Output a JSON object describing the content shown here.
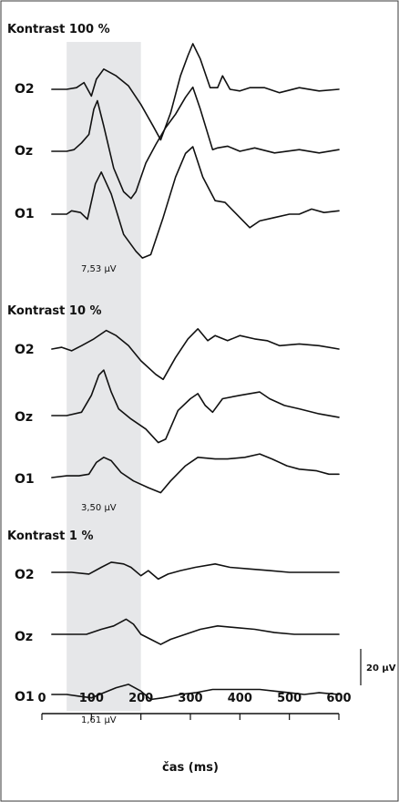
{
  "chart_data": {
    "type": "line",
    "xlabel": "čas (ms)",
    "xlim": [
      0,
      600
    ],
    "x_ticks": [
      0,
      100,
      200,
      300,
      400,
      500,
      600
    ],
    "highlight_window_ms": [
      50,
      200
    ],
    "highlight_color": "#e6e7e9",
    "scale_bar_label": "20 µV",
    "panels": [
      {
        "title": "Kontrast 100 %",
        "amplitude_label": "7,53 µV",
        "series": [
          {
            "name": "O2",
            "points": [
              [
                20,
                0
              ],
              [
                50,
                0
              ],
              [
                70,
                -1
              ],
              [
                85,
                -4
              ],
              [
                100,
                4
              ],
              [
                110,
                -6
              ],
              [
                125,
                -12
              ],
              [
                150,
                -8
              ],
              [
                175,
                -2
              ],
              [
                200,
                9
              ],
              [
                225,
                22
              ],
              [
                240,
                30
              ],
              [
                260,
                14
              ],
              [
                280,
                -8
              ],
              [
                295,
                -20
              ],
              [
                305,
                -27
              ],
              [
                320,
                -18
              ],
              [
                340,
                -1
              ],
              [
                355,
                -1
              ],
              [
                365,
                -8
              ],
              [
                380,
                0
              ],
              [
                400,
                1
              ],
              [
                420,
                -1
              ],
              [
                450,
                -1
              ],
              [
                480,
                2
              ],
              [
                520,
                -1
              ],
              [
                560,
                1
              ],
              [
                600,
                0
              ]
            ]
          },
          {
            "name": "Oz",
            "points": [
              [
                20,
                0
              ],
              [
                50,
                0
              ],
              [
                65,
                -1
              ],
              [
                80,
                -5
              ],
              [
                95,
                -10
              ],
              [
                105,
                -25
              ],
              [
                112,
                -30
              ],
              [
                125,
                -15
              ],
              [
                145,
                10
              ],
              [
                165,
                24
              ],
              [
                180,
                28
              ],
              [
                190,
                24
              ],
              [
                210,
                7
              ],
              [
                230,
                -4
              ],
              [
                250,
                -14
              ],
              [
                270,
                -22
              ],
              [
                290,
                -32
              ],
              [
                305,
                -38
              ],
              [
                320,
                -25
              ],
              [
                345,
                -1
              ],
              [
                355,
                -2
              ],
              [
                375,
                -3
              ],
              [
                400,
                0
              ],
              [
                430,
                -2
              ],
              [
                470,
                1
              ],
              [
                520,
                -1
              ],
              [
                560,
                1
              ],
              [
                600,
                -1
              ]
            ]
          },
          {
            "name": "O1",
            "points": [
              [
                20,
                0
              ],
              [
                50,
                0
              ],
              [
                60,
                -2
              ],
              [
                78,
                -1
              ],
              [
                92,
                3
              ],
              [
                108,
                -18
              ],
              [
                120,
                -25
              ],
              [
                140,
                -12
              ],
              [
                165,
                12
              ],
              [
                190,
                22
              ],
              [
                203,
                26
              ],
              [
                220,
                24
              ],
              [
                245,
                2
              ],
              [
                270,
                -22
              ],
              [
                290,
                -36
              ],
              [
                305,
                -40
              ],
              [
                325,
                -22
              ],
              [
                350,
                -8
              ],
              [
                370,
                -7
              ],
              [
                390,
                -1
              ],
              [
                420,
                8
              ],
              [
                440,
                4
              ],
              [
                470,
                2
              ],
              [
                500,
                0
              ],
              [
                520,
                0
              ],
              [
                545,
                -3
              ],
              [
                570,
                -1
              ],
              [
                600,
                -2
              ]
            ]
          }
        ]
      },
      {
        "title": "Kontrast 10 %",
        "amplitude_label": "3,50 µV",
        "series": [
          {
            "name": "O2",
            "points": [
              [
                20,
                0
              ],
              [
                40,
                -1
              ],
              [
                60,
                1
              ],
              [
                80,
                -2
              ],
              [
                105,
                -6
              ],
              [
                130,
                -11
              ],
              [
                150,
                -8
              ],
              [
                175,
                -2
              ],
              [
                200,
                7
              ],
              [
                230,
                15
              ],
              [
                245,
                18
              ],
              [
                270,
                5
              ],
              [
                295,
                -6
              ],
              [
                315,
                -12
              ],
              [
                335,
                -5
              ],
              [
                350,
                -8
              ],
              [
                375,
                -5
              ],
              [
                400,
                -8
              ],
              [
                430,
                -6
              ],
              [
                455,
                -5
              ],
              [
                480,
                -2
              ],
              [
                520,
                -3
              ],
              [
                560,
                -2
              ],
              [
                600,
                0
              ]
            ]
          },
          {
            "name": "Oz",
            "points": [
              [
                20,
                0
              ],
              [
                50,
                0
              ],
              [
                80,
                -2
              ],
              [
                100,
                -12
              ],
              [
                115,
                -24
              ],
              [
                125,
                -27
              ],
              [
                140,
                -14
              ],
              [
                155,
                -4
              ],
              [
                180,
                2
              ],
              [
                210,
                8
              ],
              [
                235,
                16
              ],
              [
                250,
                14
              ],
              [
                275,
                -3
              ],
              [
                300,
                -10
              ],
              [
                315,
                -13
              ],
              [
                330,
                -6
              ],
              [
                345,
                -2
              ],
              [
                365,
                -10
              ],
              [
                400,
                -12
              ],
              [
                440,
                -14
              ],
              [
                460,
                -10
              ],
              [
                490,
                -6
              ],
              [
                520,
                -4
              ],
              [
                560,
                -1
              ],
              [
                600,
                1
              ]
            ]
          },
          {
            "name": "O1",
            "points": [
              [
                20,
                0
              ],
              [
                50,
                -1
              ],
              [
                75,
                -1
              ],
              [
                95,
                -2
              ],
              [
                110,
                -9
              ],
              [
                125,
                -12
              ],
              [
                140,
                -10
              ],
              [
                160,
                -3
              ],
              [
                185,
                2
              ],
              [
                215,
                6
              ],
              [
                240,
                9
              ],
              [
                260,
                2
              ],
              [
                290,
                -7
              ],
              [
                315,
                -12
              ],
              [
                350,
                -11
              ],
              [
                375,
                -11
              ],
              [
                410,
                -12
              ],
              [
                440,
                -14
              ],
              [
                465,
                -11
              ],
              [
                495,
                -7
              ],
              [
                520,
                -5
              ],
              [
                555,
                -4
              ],
              [
                580,
                -2
              ],
              [
                600,
                -2
              ]
            ]
          }
        ]
      },
      {
        "title": "Kontrast 1 %",
        "amplitude_label": "1,61 µV",
        "series": [
          {
            "name": "O2",
            "points": [
              [
                20,
                0
              ],
              [
                60,
                0
              ],
              [
                95,
                1
              ],
              [
                120,
                -3
              ],
              [
                140,
                -6
              ],
              [
                165,
                -5
              ],
              [
                180,
                -3
              ],
              [
                200,
                2
              ],
              [
                215,
                -1
              ],
              [
                235,
                4
              ],
              [
                255,
                1
              ],
              [
                280,
                -1
              ],
              [
                310,
                -3
              ],
              [
                350,
                -5
              ],
              [
                380,
                -3
              ],
              [
                420,
                -2
              ],
              [
                460,
                -1
              ],
              [
                500,
                0
              ],
              [
                540,
                0
              ],
              [
                580,
                0
              ],
              [
                600,
                0
              ]
            ]
          },
          {
            "name": "Oz",
            "points": [
              [
                20,
                0
              ],
              [
                50,
                0
              ],
              [
                90,
                0
              ],
              [
                120,
                -3
              ],
              [
                145,
                -5
              ],
              [
                170,
                -9
              ],
              [
                185,
                -6
              ],
              [
                200,
                0
              ],
              [
                220,
                3
              ],
              [
                240,
                6
              ],
              [
                260,
                3
              ],
              [
                290,
                0
              ],
              [
                320,
                -3
              ],
              [
                355,
                -5
              ],
              [
                390,
                -4
              ],
              [
                430,
                -3
              ],
              [
                470,
                -1
              ],
              [
                510,
                0
              ],
              [
                550,
                0
              ],
              [
                600,
                0
              ]
            ]
          },
          {
            "name": "O1",
            "points": [
              [
                20,
                0
              ],
              [
                50,
                0
              ],
              [
                75,
                1
              ],
              [
                100,
                2
              ],
              [
                125,
                -1
              ],
              [
                150,
                -4
              ],
              [
                175,
                -6
              ],
              [
                200,
                -2
              ],
              [
                220,
                3
              ],
              [
                245,
                2
              ],
              [
                280,
                0
              ],
              [
                310,
                -1
              ],
              [
                345,
                -3
              ],
              [
                380,
                -3
              ],
              [
                410,
                -3
              ],
              [
                440,
                -3
              ],
              [
                470,
                -2
              ],
              [
                500,
                -1
              ],
              [
                530,
                0
              ],
              [
                560,
                -1
              ],
              [
                600,
                0
              ]
            ]
          }
        ]
      }
    ]
  }
}
